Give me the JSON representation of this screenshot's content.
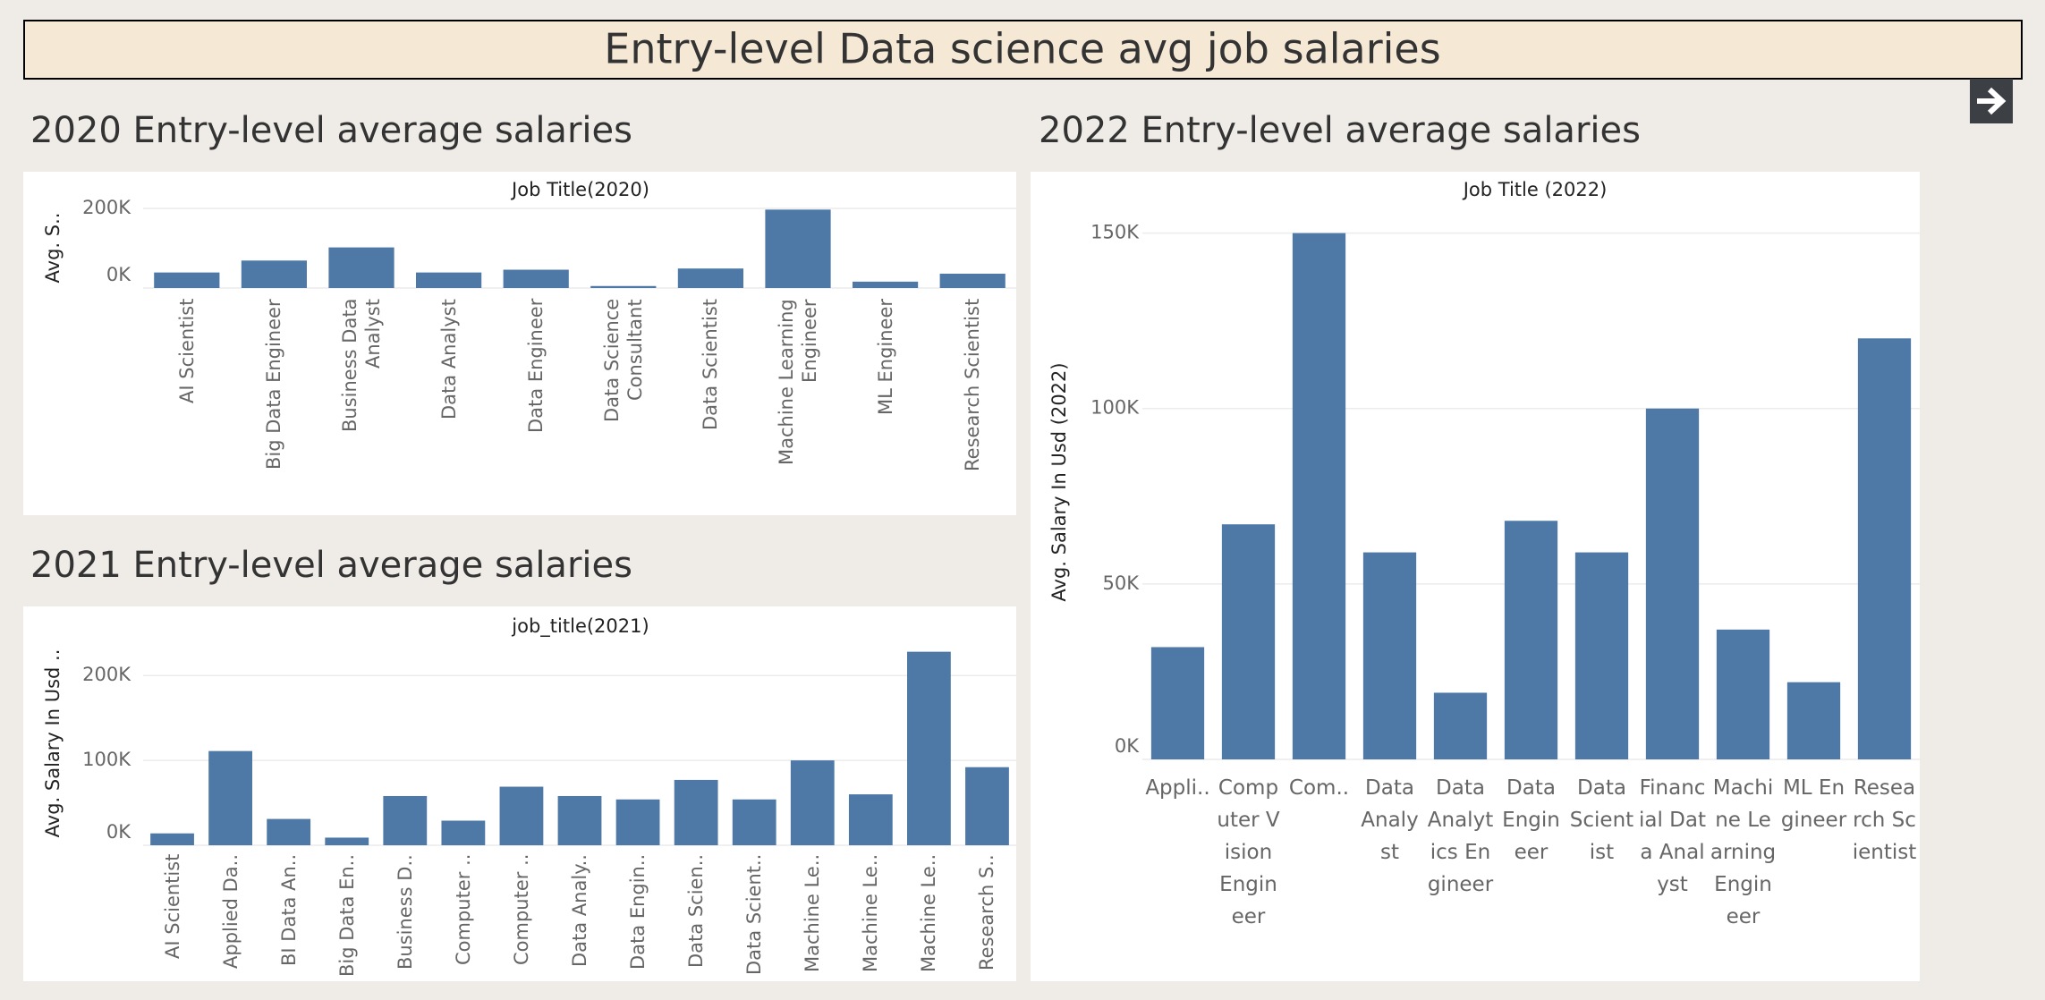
{
  "title": "Entry-level Data science avg job salaries",
  "chart_data": [
    {
      "type": "bar",
      "title": "2020 Entry-level average salaries",
      "x_label": "Job Title(2020)",
      "y_label": "Avg. S..",
      "categories": [
        "AI Scientist",
        "Big Data Engineer",
        "Business Data Analyst",
        "Data Analyst",
        "Data Engineer",
        "Data Science Consultant",
        "Data Scientist",
        "Machine Learning Engineer",
        "ML Engineer",
        "Research Scientist"
      ],
      "values": [
        39000,
        69000,
        102000,
        39000,
        46000,
        5000,
        49000,
        197000,
        16000,
        36000
      ],
      "color": "#4e79a7",
      "ylim": [
        0,
        200000
      ],
      "yticks": [
        {
          "value": 0,
          "label": "0K"
        },
        {
          "value": 200000,
          "label": "200K"
        }
      ],
      "grid": true
    },
    {
      "type": "bar",
      "title": "2021 Entry-level average salaries",
      "x_label": "job_title(2021)",
      "y_label": "Avg. Salary In Usd ..",
      "categories": [
        "AI Scientist",
        "Applied Da..",
        "BI Data An..",
        "Big Data En..",
        "Business D..",
        "Computer ..",
        "Computer ..",
        "Data Analy..",
        "Data Engin..",
        "Data Scien..",
        "Data Scient..",
        "Machine Le..",
        "Machine Le..",
        "Machine Le..",
        "Research S.."
      ],
      "values": [
        14000,
        111000,
        31000,
        9000,
        58000,
        29000,
        69000,
        58000,
        54000,
        77000,
        54000,
        100000,
        60000,
        228000,
        92000
      ],
      "color": "#4e79a7",
      "ylim": [
        0,
        235000
      ],
      "yticks": [
        {
          "value": 0,
          "label": "0K"
        },
        {
          "value": 100000,
          "label": "100K"
        },
        {
          "value": 200000,
          "label": "200K"
        }
      ],
      "grid": true
    },
    {
      "type": "bar",
      "title": "2022 Entry-level average salaries",
      "x_label": "Job Title (2022)",
      "y_label": "Avg. Salary In Usd (2022)",
      "categories": [
        "Appli..",
        "Computer Vision Engineer",
        "Com..",
        "Data Analyst",
        "Data Analytics Engineer",
        "Data Engineer",
        "Data Scientist",
        "Financial Data Analyst",
        "Machine Learning Engineer",
        "ML Engineer",
        "Research Scientist"
      ],
      "values": [
        32000,
        67000,
        150000,
        59000,
        19000,
        68000,
        59000,
        100000,
        37000,
        22000,
        120000
      ],
      "color": "#4e79a7",
      "ylim": [
        0,
        155000
      ],
      "yticks": [
        {
          "value": 0,
          "label": "0K"
        },
        {
          "value": 50000,
          "label": "50K"
        },
        {
          "value": 100000,
          "label": "100K"
        },
        {
          "value": 150000,
          "label": "150K"
        }
      ],
      "grid": true
    }
  ]
}
